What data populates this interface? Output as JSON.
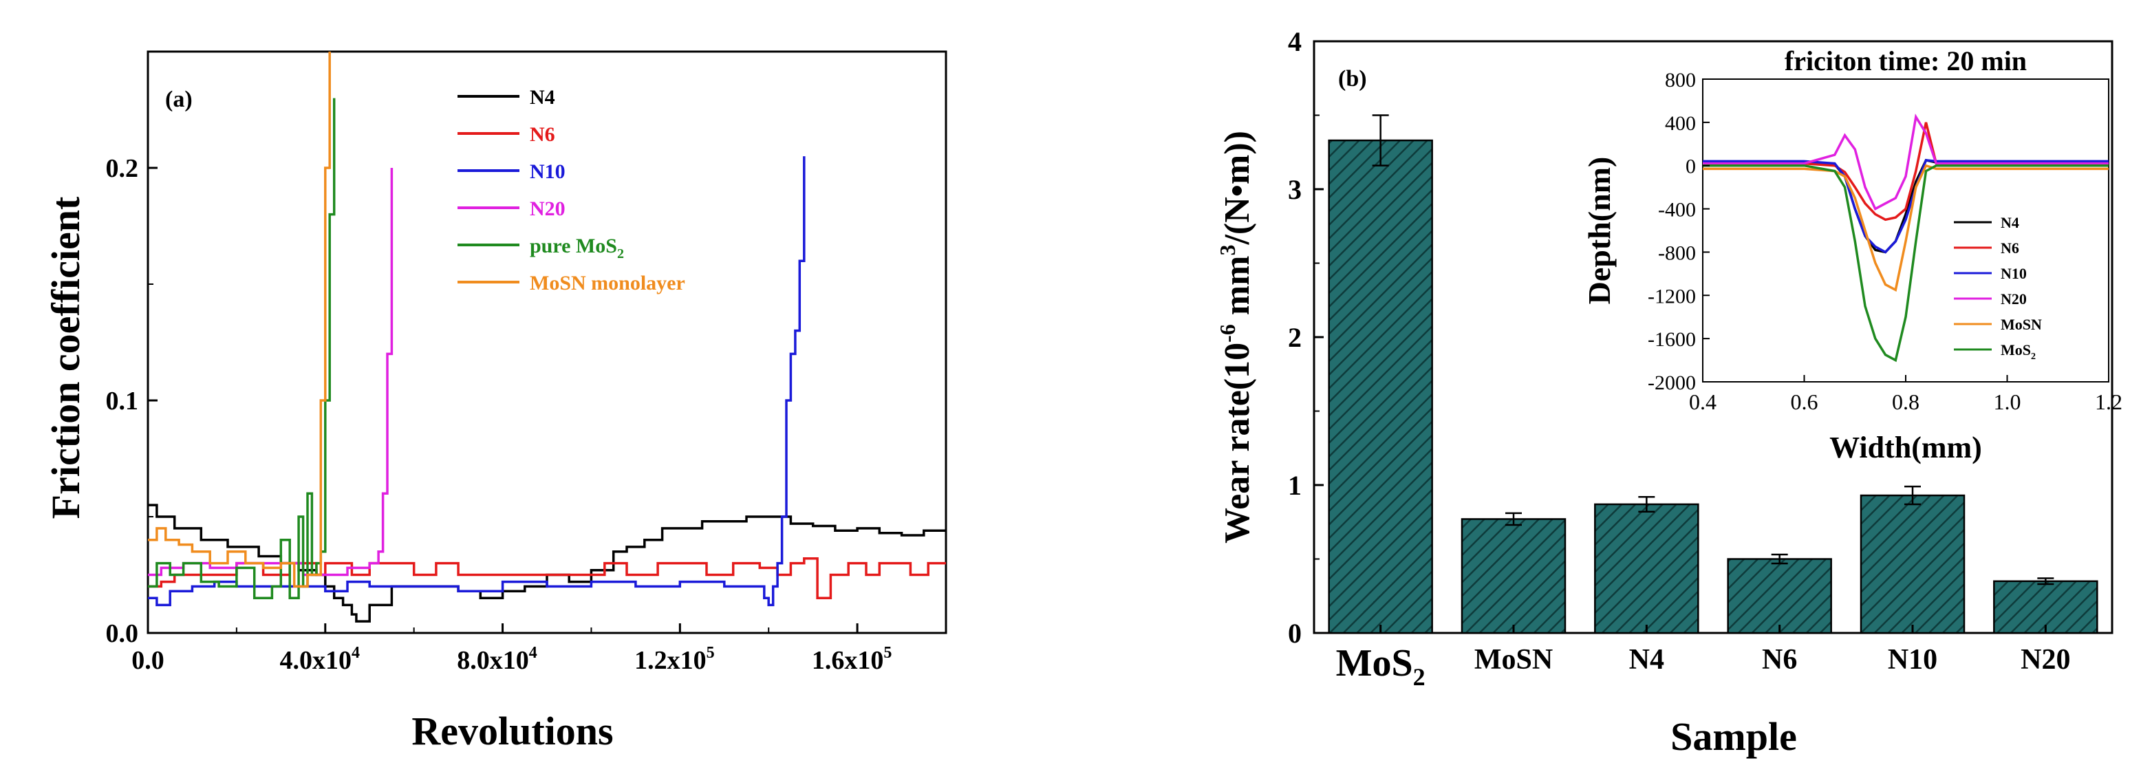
{
  "chart_data": [
    {
      "type": "line",
      "panel_label": "(a)",
      "xlabel": "Revolutions",
      "ylabel": "Friction coefficient",
      "xlim": [
        0,
        180000
      ],
      "ylim": [
        0,
        0.25
      ],
      "xticks": [
        0,
        40000,
        80000,
        120000,
        160000
      ],
      "xtick_labels": [
        {
          "mant": "0.0",
          "exp": ""
        },
        {
          "mant": "4.0x10",
          "exp": "4"
        },
        {
          "mant": "8.0x10",
          "exp": "4"
        },
        {
          "mant": "1.2x10",
          "exp": "5"
        },
        {
          "mant": "1.6x10",
          "exp": "5"
        }
      ],
      "yticks": [
        0,
        0.1,
        0.2
      ],
      "ytick_labels": [
        "0.0",
        "0.1",
        "0.2"
      ],
      "legend_position": "top-right",
      "series": [
        {
          "name": "N4",
          "name_sub": "",
          "name_suffix": "",
          "color": "#000000",
          "x": [
            0,
            2000,
            6000,
            12000,
            18000,
            25000,
            30000,
            34000,
            38000,
            40000,
            42000,
            44000,
            46000,
            47000,
            50000,
            55000,
            60000,
            66000,
            70000,
            75000,
            80000,
            85000,
            90000,
            95000,
            100000,
            105000,
            108000,
            112000,
            116000,
            120000,
            125000,
            130000,
            135000,
            140000,
            145000,
            150000,
            155000,
            160000,
            165000,
            170000,
            175000,
            180000
          ],
          "y": [
            0.055,
            0.05,
            0.045,
            0.04,
            0.037,
            0.033,
            0.03,
            0.027,
            0.025,
            0.02,
            0.015,
            0.012,
            0.008,
            0.005,
            0.012,
            0.02,
            0.02,
            0.02,
            0.018,
            0.015,
            0.018,
            0.02,
            0.025,
            0.022,
            0.027,
            0.035,
            0.037,
            0.04,
            0.045,
            0.045,
            0.048,
            0.048,
            0.05,
            0.05,
            0.047,
            0.046,
            0.044,
            0.045,
            0.043,
            0.042,
            0.044,
            0.044
          ]
        },
        {
          "name": "N6",
          "name_sub": "",
          "name_suffix": "",
          "color": "#e41a1a",
          "x": [
            0,
            3000,
            6000,
            10000,
            14000,
            20000,
            26000,
            32000,
            38000,
            40000,
            44000,
            46000,
            50000,
            55000,
            60000,
            65000,
            70000,
            78000,
            86000,
            95000,
            103000,
            108000,
            115000,
            120000,
            126000,
            132000,
            138000,
            142000,
            145000,
            148000,
            151000,
            154000,
            158000,
            162000,
            165000,
            168000,
            172000,
            176000,
            180000
          ],
          "y": [
            0.02,
            0.022,
            0.025,
            0.025,
            0.025,
            0.03,
            0.025,
            0.03,
            0.025,
            0.03,
            0.03,
            0.025,
            0.03,
            0.03,
            0.025,
            0.03,
            0.025,
            0.025,
            0.025,
            0.025,
            0.03,
            0.025,
            0.03,
            0.03,
            0.025,
            0.03,
            0.028,
            0.025,
            0.03,
            0.032,
            0.015,
            0.025,
            0.03,
            0.025,
            0.03,
            0.03,
            0.025,
            0.03,
            0.03
          ]
        },
        {
          "name": "N10",
          "name_sub": "",
          "name_suffix": "",
          "color": "#1a1ad9",
          "x": [
            0,
            2000,
            5000,
            10000,
            15000,
            20000,
            30000,
            38000,
            40000,
            45000,
            50000,
            55000,
            60000,
            70000,
            80000,
            90000,
            100000,
            110000,
            120000,
            130000,
            135000,
            139000,
            140000,
            141000,
            142000,
            143000,
            144000,
            145000,
            146000,
            147000,
            148000
          ],
          "y": [
            0.015,
            0.012,
            0.018,
            0.02,
            0.022,
            0.02,
            0.02,
            0.02,
            0.018,
            0.022,
            0.02,
            0.02,
            0.02,
            0.018,
            0.022,
            0.02,
            0.022,
            0.02,
            0.022,
            0.02,
            0.02,
            0.015,
            0.012,
            0.02,
            0.03,
            0.05,
            0.1,
            0.12,
            0.13,
            0.16,
            0.205
          ]
        },
        {
          "name": "N20",
          "name_sub": "",
          "name_suffix": "",
          "color": "#e020e0",
          "x": [
            0,
            3000,
            8000,
            14000,
            20000,
            28000,
            35000,
            40000,
            45000,
            50000,
            52000,
            53000,
            54000,
            55000
          ],
          "y": [
            0.025,
            0.028,
            0.03,
            0.028,
            0.03,
            0.03,
            0.025,
            0.025,
            0.028,
            0.03,
            0.035,
            0.06,
            0.12,
            0.2
          ]
        },
        {
          "name": "pure MoS",
          "name_sub": "2",
          "name_suffix": "",
          "color": "#1f8a1f",
          "x": [
            0,
            2000,
            5000,
            8000,
            12000,
            16000,
            20000,
            24000,
            28000,
            30000,
            32000,
            34000,
            35000,
            36000,
            37000,
            38000,
            39000,
            40000,
            41000,
            42000
          ],
          "y": [
            0.02,
            0.03,
            0.025,
            0.03,
            0.022,
            0.02,
            0.028,
            0.015,
            0.02,
            0.04,
            0.015,
            0.05,
            0.02,
            0.06,
            0.025,
            0.03,
            0.035,
            0.1,
            0.18,
            0.23
          ]
        },
        {
          "name": "MoSN monolayer",
          "name_sub": "",
          "name_suffix": "",
          "color": "#f08c1e",
          "x": [
            0,
            2000,
            4000,
            7000,
            10000,
            14000,
            18000,
            22000,
            26000,
            30000,
            33000,
            36000,
            38000,
            39000,
            40000,
            41000
          ],
          "y": [
            0.04,
            0.045,
            0.04,
            0.038,
            0.035,
            0.03,
            0.035,
            0.03,
            0.028,
            0.03,
            0.02,
            0.025,
            0.025,
            0.1,
            0.2,
            0.25
          ]
        }
      ]
    },
    {
      "type": "bar",
      "panel_label": "(b)",
      "xlabel": "Sample",
      "ylabel": "Wear rate",
      "ylabel_prefix": "Wear rate(10",
      "ylabel_exp1": "-6",
      "ylabel_unit": " mm",
      "ylabel_exp2": "3",
      "ylabel_end": "/(N•m))",
      "ylim": [
        0,
        4
      ],
      "yticks": [
        0,
        1,
        2,
        3,
        4
      ],
      "ytick_labels": [
        "0",
        "1",
        "2",
        "3",
        "4"
      ],
      "categories": [
        {
          "main": "MoS",
          "sub": "2"
        },
        {
          "main": "MoSN",
          "sub": ""
        },
        {
          "main": "N4",
          "sub": ""
        },
        {
          "main": "N6",
          "sub": ""
        },
        {
          "main": "N10",
          "sub": ""
        },
        {
          "main": "N20",
          "sub": ""
        }
      ],
      "values": [
        3.33,
        0.77,
        0.87,
        0.5,
        0.93,
        0.35
      ],
      "errors": [
        0.17,
        0.04,
        0.05,
        0.03,
        0.06,
        0.02
      ],
      "bar_color": "#236e6e",
      "inset": {
        "type": "line",
        "title": "friciton time: 20 min",
        "xlabel": "Width(mm)",
        "ylabel": "Depth(nm)",
        "xlim": [
          0.4,
          1.2
        ],
        "ylim": [
          -2000,
          800
        ],
        "xticks": [
          0.4,
          0.6,
          0.8,
          1.0,
          1.2
        ],
        "xtick_labels": [
          "0.4",
          "0.6",
          "0.8",
          "1.0",
          "1.2"
        ],
        "yticks": [
          -2000,
          -1600,
          -1200,
          -800,
          -400,
          0,
          400,
          800
        ],
        "ytick_labels": [
          "-2000",
          "-1600",
          "-1200",
          "-800",
          "-400",
          "0",
          "400",
          "800"
        ],
        "legend_position": "bottom-right",
        "series": [
          {
            "name": "N4",
            "name_sub": "",
            "color": "#000000",
            "x": [
              0.4,
              0.6,
              0.66,
              0.68,
              0.7,
              0.72,
              0.74,
              0.76,
              0.78,
              0.8,
              0.82,
              0.84,
              0.86,
              1.0,
              1.2
            ],
            "y": [
              30,
              30,
              10,
              -100,
              -400,
              -650,
              -780,
              -800,
              -700,
              -450,
              -150,
              50,
              30,
              30,
              30
            ]
          },
          {
            "name": "N6",
            "name_sub": "",
            "color": "#e41a1a",
            "x": [
              0.4,
              0.6,
              0.66,
              0.68,
              0.7,
              0.72,
              0.74,
              0.76,
              0.78,
              0.8,
              0.82,
              0.84,
              0.86,
              1.0,
              1.2
            ],
            "y": [
              20,
              20,
              0,
              -60,
              -200,
              -350,
              -450,
              -500,
              -480,
              -400,
              -50,
              400,
              20,
              20,
              20
            ]
          },
          {
            "name": "N10",
            "name_sub": "",
            "color": "#1a1ad9",
            "x": [
              0.4,
              0.6,
              0.66,
              0.68,
              0.7,
              0.72,
              0.74,
              0.76,
              0.78,
              0.8,
              0.82,
              0.84,
              0.86,
              1.0,
              1.2
            ],
            "y": [
              40,
              40,
              20,
              -100,
              -400,
              -650,
              -750,
              -800,
              -700,
              -500,
              -200,
              50,
              40,
              40,
              40
            ]
          },
          {
            "name": "N20",
            "name_sub": "",
            "color": "#e020e0",
            "x": [
              0.4,
              0.6,
              0.66,
              0.68,
              0.7,
              0.72,
              0.74,
              0.76,
              0.78,
              0.8,
              0.82,
              0.84,
              0.86,
              1.0,
              1.2
            ],
            "y": [
              20,
              20,
              100,
              280,
              150,
              -200,
              -400,
              -350,
              -300,
              -100,
              450,
              300,
              20,
              20,
              20
            ]
          },
          {
            "name": "MoSN",
            "name_sub": "",
            "color": "#f08c1e",
            "x": [
              0.4,
              0.6,
              0.66,
              0.68,
              0.7,
              0.72,
              0.74,
              0.76,
              0.78,
              0.8,
              0.82,
              0.84,
              0.86,
              1.0,
              1.2
            ],
            "y": [
              -30,
              -30,
              -50,
              -100,
              -300,
              -600,
              -900,
              -1100,
              -1150,
              -700,
              -200,
              0,
              -30,
              -30,
              -30
            ]
          },
          {
            "name": "MoS",
            "name_sub": "2",
            "color": "#1f8a1f",
            "x": [
              0.4,
              0.6,
              0.66,
              0.68,
              0.7,
              0.72,
              0.74,
              0.76,
              0.78,
              0.8,
              0.82,
              0.84,
              0.86,
              1.0,
              1.2
            ],
            "y": [
              0,
              0,
              -50,
              -200,
              -700,
              -1300,
              -1600,
              -1750,
              -1800,
              -1400,
              -700,
              -50,
              0,
              0,
              0
            ]
          }
        ]
      }
    }
  ]
}
